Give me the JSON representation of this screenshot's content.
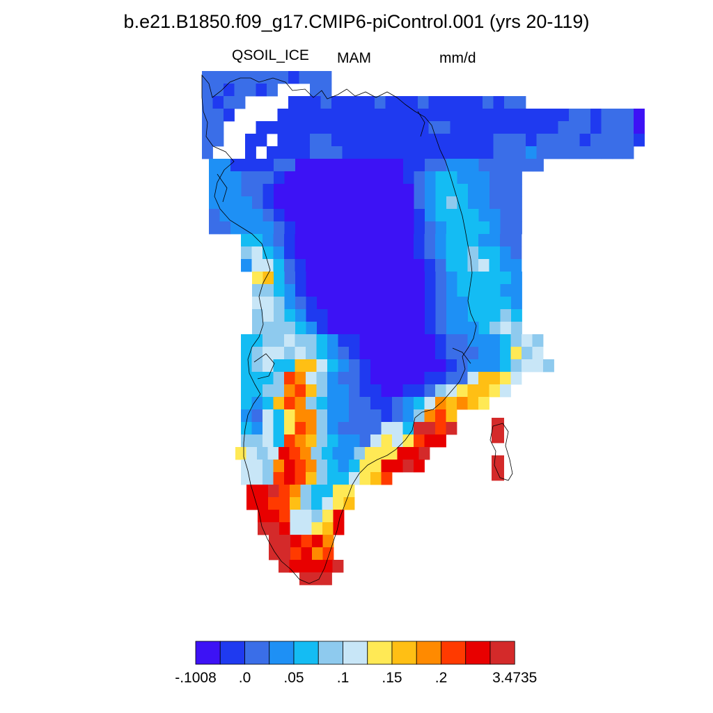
{
  "title": "b.e21.B1850.f09_g17.CMIP6-piControl.001 (yrs 20-119)",
  "subtitle": {
    "variable": "QSOIL_ICE",
    "season": "MAM",
    "units": "mm/d"
  },
  "chart_data": {
    "type": "heatmap",
    "title": "b.e21.B1850.f09_g17.CMIP6-piControl.001 (yrs 20-119)",
    "region": "Greenland",
    "colorbar": {
      "orientation": "horizontal",
      "placement": "bottom",
      "colors": [
        "#3d12f5",
        "#1f3af0",
        "#3a6ee8",
        "#1e90f5",
        "#14bcf3",
        "#8ecaee",
        "#c8e6f7",
        "#ffe955",
        "#ffbf14",
        "#ff8a00",
        "#ff3a00",
        "#e80000",
        "#d42a2a"
      ],
      "tick_labels": [
        "-.1008",
        ".0",
        ".05",
        ".1",
        ".15",
        ".2",
        "3.4735"
      ],
      "tick_positions_after_bin": [
        0,
        2,
        4,
        6,
        8,
        10,
        13
      ],
      "boundaries": [
        -0.1008,
        -0.025,
        0.0,
        0.025,
        0.05,
        0.075,
        0.1,
        0.125,
        0.15,
        0.175,
        0.2,
        0.225,
        0.25,
        3.4735
      ]
    }
  },
  "colors": {
    "lowest": "#3d12f5",
    "highest": "#d42a2a",
    "coastline": "#000000"
  }
}
